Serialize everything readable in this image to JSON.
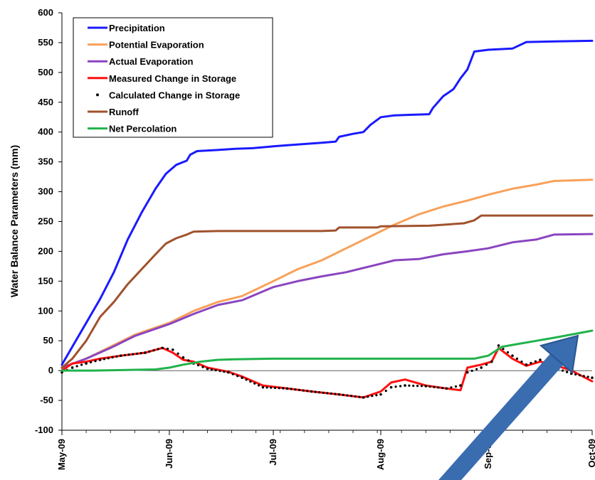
{
  "chart_data": {
    "type": "line",
    "title": "",
    "xlabel": "",
    "ylabel": "Water Balance Parameters (mm)",
    "ylim": [
      -100,
      600
    ],
    "yticks": [
      -100,
      -50,
      0,
      50,
      100,
      150,
      200,
      250,
      300,
      350,
      400,
      450,
      500,
      550,
      600
    ],
    "x_axis": "date",
    "xlim": [
      "2009-05-01",
      "2009-10-01"
    ],
    "xticks": [
      {
        "date": "2009-05-01",
        "label": "May-09"
      },
      {
        "date": "2009-06-01",
        "label": "Jun-09"
      },
      {
        "date": "2009-07-01",
        "label": "Jul-09"
      },
      {
        "date": "2009-08-01",
        "label": "Aug-09"
      },
      {
        "date": "2009-09-01",
        "label": "Sep-09"
      },
      {
        "date": "2009-10-01",
        "label": "Oct-09"
      }
    ],
    "grid": false,
    "legend_position": "top-left",
    "series": [
      {
        "name": "Precipitation",
        "color": "#1a1aff",
        "style": "line",
        "points": [
          [
            "2009-05-01",
            10
          ],
          [
            "2009-05-04",
            40
          ],
          [
            "2009-05-08",
            80
          ],
          [
            "2009-05-12",
            120
          ],
          [
            "2009-05-16",
            165
          ],
          [
            "2009-05-20",
            220
          ],
          [
            "2009-05-24",
            265
          ],
          [
            "2009-05-28",
            305
          ],
          [
            "2009-05-31",
            330
          ],
          [
            "2009-06-03",
            345
          ],
          [
            "2009-06-06",
            352
          ],
          [
            "2009-06-07",
            362
          ],
          [
            "2009-06-09",
            368
          ],
          [
            "2009-06-15",
            370
          ],
          [
            "2009-06-20",
            372
          ],
          [
            "2009-06-25",
            373
          ],
          [
            "2009-07-01",
            376
          ],
          [
            "2009-07-05",
            378
          ],
          [
            "2009-07-10",
            380
          ],
          [
            "2009-07-15",
            382
          ],
          [
            "2009-07-19",
            384
          ],
          [
            "2009-07-20",
            392
          ],
          [
            "2009-07-24",
            397
          ],
          [
            "2009-07-27",
            400
          ],
          [
            "2009-07-29",
            412
          ],
          [
            "2009-08-01",
            425
          ],
          [
            "2009-08-05",
            428
          ],
          [
            "2009-08-10",
            429
          ],
          [
            "2009-08-15",
            430
          ],
          [
            "2009-08-16",
            440
          ],
          [
            "2009-08-19",
            460
          ],
          [
            "2009-08-22",
            472
          ],
          [
            "2009-08-24",
            490
          ],
          [
            "2009-08-26",
            505
          ],
          [
            "2009-08-28",
            535
          ],
          [
            "2009-09-01",
            538
          ],
          [
            "2009-09-08",
            540
          ],
          [
            "2009-09-12",
            551
          ],
          [
            "2009-09-20",
            552
          ],
          [
            "2009-10-01",
            553
          ]
        ]
      },
      {
        "name": "Potential Evaporation",
        "color": "#f8a15a",
        "style": "line",
        "points": [
          [
            "2009-05-01",
            5
          ],
          [
            "2009-05-08",
            20
          ],
          [
            "2009-05-15",
            40
          ],
          [
            "2009-05-22",
            60
          ],
          [
            "2009-06-01",
            80
          ],
          [
            "2009-06-08",
            100
          ],
          [
            "2009-06-15",
            115
          ],
          [
            "2009-06-22",
            125
          ],
          [
            "2009-07-01",
            150
          ],
          [
            "2009-07-08",
            170
          ],
          [
            "2009-07-15",
            185
          ],
          [
            "2009-07-22",
            205
          ],
          [
            "2009-07-29",
            225
          ],
          [
            "2009-08-05",
            245
          ],
          [
            "2009-08-12",
            262
          ],
          [
            "2009-08-19",
            275
          ],
          [
            "2009-08-26",
            285
          ],
          [
            "2009-09-01",
            295
          ],
          [
            "2009-09-08",
            305
          ],
          [
            "2009-09-15",
            312
          ],
          [
            "2009-09-20",
            318
          ],
          [
            "2009-10-01",
            320
          ]
        ]
      },
      {
        "name": "Actual Evaporation",
        "color": "#8a45c0",
        "style": "line",
        "points": [
          [
            "2009-05-01",
            5
          ],
          [
            "2009-05-08",
            20
          ],
          [
            "2009-05-15",
            38
          ],
          [
            "2009-05-22",
            58
          ],
          [
            "2009-06-01",
            78
          ],
          [
            "2009-06-08",
            95
          ],
          [
            "2009-06-15",
            110
          ],
          [
            "2009-06-22",
            118
          ],
          [
            "2009-07-01",
            140
          ],
          [
            "2009-07-08",
            150
          ],
          [
            "2009-07-15",
            158
          ],
          [
            "2009-07-22",
            165
          ],
          [
            "2009-07-29",
            175
          ],
          [
            "2009-08-05",
            185
          ],
          [
            "2009-08-12",
            187
          ],
          [
            "2009-08-19",
            195
          ],
          [
            "2009-08-26",
            200
          ],
          [
            "2009-09-01",
            205
          ],
          [
            "2009-09-08",
            215
          ],
          [
            "2009-09-15",
            220
          ],
          [
            "2009-09-20",
            228
          ],
          [
            "2009-10-01",
            229
          ]
        ]
      },
      {
        "name": "Measured Change in Storage",
        "color": "#ff1010",
        "style": "line",
        "points": [
          [
            "2009-05-01",
            0
          ],
          [
            "2009-05-04",
            12
          ],
          [
            "2009-05-08",
            15
          ],
          [
            "2009-05-12",
            20
          ],
          [
            "2009-05-18",
            25
          ],
          [
            "2009-05-25",
            30
          ],
          [
            "2009-05-30",
            38
          ],
          [
            "2009-06-02",
            30
          ],
          [
            "2009-06-05",
            18
          ],
          [
            "2009-06-08",
            15
          ],
          [
            "2009-06-12",
            5
          ],
          [
            "2009-06-18",
            -2
          ],
          [
            "2009-06-22",
            -10
          ],
          [
            "2009-06-28",
            -25
          ],
          [
            "2009-07-05",
            -30
          ],
          [
            "2009-07-12",
            -35
          ],
          [
            "2009-07-20",
            -40
          ],
          [
            "2009-07-27",
            -45
          ],
          [
            "2009-08-01",
            -35
          ],
          [
            "2009-08-04",
            -20
          ],
          [
            "2009-08-08",
            -15
          ],
          [
            "2009-08-14",
            -25
          ],
          [
            "2009-08-20",
            -30
          ],
          [
            "2009-08-24",
            -33
          ],
          [
            "2009-08-26",
            5
          ],
          [
            "2009-08-30",
            10
          ],
          [
            "2009-09-02",
            15
          ],
          [
            "2009-09-04",
            38
          ],
          [
            "2009-09-08",
            20
          ],
          [
            "2009-09-12",
            8
          ],
          [
            "2009-09-16",
            15
          ],
          [
            "2009-09-20",
            10
          ],
          [
            "2009-09-25",
            0
          ],
          [
            "2009-10-01",
            -18
          ]
        ]
      },
      {
        "name": "Calculated Change in Storage",
        "color": "#000000",
        "style": "dots",
        "points": [
          [
            "2009-05-01",
            -3
          ],
          [
            "2009-05-04",
            5
          ],
          [
            "2009-05-08",
            12
          ],
          [
            "2009-05-12",
            18
          ],
          [
            "2009-05-18",
            25
          ],
          [
            "2009-05-25",
            30
          ],
          [
            "2009-05-30",
            38
          ],
          [
            "2009-06-02",
            35
          ],
          [
            "2009-06-05",
            22
          ],
          [
            "2009-06-08",
            12
          ],
          [
            "2009-06-12",
            3
          ],
          [
            "2009-06-18",
            -3
          ],
          [
            "2009-06-22",
            -12
          ],
          [
            "2009-06-28",
            -28
          ],
          [
            "2009-07-05",
            -30
          ],
          [
            "2009-07-12",
            -35
          ],
          [
            "2009-07-20",
            -40
          ],
          [
            "2009-07-27",
            -45
          ],
          [
            "2009-08-01",
            -40
          ],
          [
            "2009-08-04",
            -28
          ],
          [
            "2009-08-08",
            -25
          ],
          [
            "2009-08-14",
            -26
          ],
          [
            "2009-08-20",
            -30
          ],
          [
            "2009-08-24",
            -25
          ],
          [
            "2009-08-26",
            -3
          ],
          [
            "2009-08-30",
            5
          ],
          [
            "2009-09-02",
            15
          ],
          [
            "2009-09-04",
            42
          ],
          [
            "2009-09-08",
            25
          ],
          [
            "2009-09-12",
            10
          ],
          [
            "2009-09-16",
            18
          ],
          [
            "2009-09-20",
            5
          ],
          [
            "2009-09-25",
            -5
          ],
          [
            "2009-10-01",
            -12
          ]
        ]
      },
      {
        "name": "Runoff",
        "color": "#a0522d",
        "style": "line",
        "points": [
          [
            "2009-05-01",
            5
          ],
          [
            "2009-05-04",
            20
          ],
          [
            "2009-05-08",
            50
          ],
          [
            "2009-05-12",
            90
          ],
          [
            "2009-05-16",
            115
          ],
          [
            "2009-05-20",
            145
          ],
          [
            "2009-05-24",
            170
          ],
          [
            "2009-05-28",
            195
          ],
          [
            "2009-05-31",
            213
          ],
          [
            "2009-06-03",
            222
          ],
          [
            "2009-06-06",
            228
          ],
          [
            "2009-06-08",
            233
          ],
          [
            "2009-06-15",
            234
          ],
          [
            "2009-06-30",
            234
          ],
          [
            "2009-07-15",
            234
          ],
          [
            "2009-07-19",
            235
          ],
          [
            "2009-07-20",
            240
          ],
          [
            "2009-07-31",
            240
          ],
          [
            "2009-08-01",
            242
          ],
          [
            "2009-08-15",
            243
          ],
          [
            "2009-08-20",
            245
          ],
          [
            "2009-08-25",
            247
          ],
          [
            "2009-08-28",
            252
          ],
          [
            "2009-08-30",
            260
          ],
          [
            "2009-09-15",
            260
          ],
          [
            "2009-10-01",
            260
          ]
        ]
      },
      {
        "name": "Net Percolation",
        "color": "#22b24c",
        "style": "line",
        "points": [
          [
            "2009-05-01",
            0
          ],
          [
            "2009-05-10",
            0
          ],
          [
            "2009-05-20",
            1
          ],
          [
            "2009-05-28",
            2
          ],
          [
            "2009-06-01",
            5
          ],
          [
            "2009-06-05",
            10
          ],
          [
            "2009-06-10",
            15
          ],
          [
            "2009-06-15",
            18
          ],
          [
            "2009-06-20",
            19
          ],
          [
            "2009-07-01",
            20
          ],
          [
            "2009-07-15",
            20
          ],
          [
            "2009-08-01",
            20
          ],
          [
            "2009-08-15",
            20
          ],
          [
            "2009-08-28",
            20
          ],
          [
            "2009-09-01",
            25
          ],
          [
            "2009-09-05",
            40
          ],
          [
            "2009-09-10",
            45
          ],
          [
            "2009-09-15",
            50
          ],
          [
            "2009-09-20",
            55
          ],
          [
            "2009-10-01",
            67
          ]
        ]
      }
    ]
  },
  "arrow": {
    "color": "#3a6cb0"
  }
}
